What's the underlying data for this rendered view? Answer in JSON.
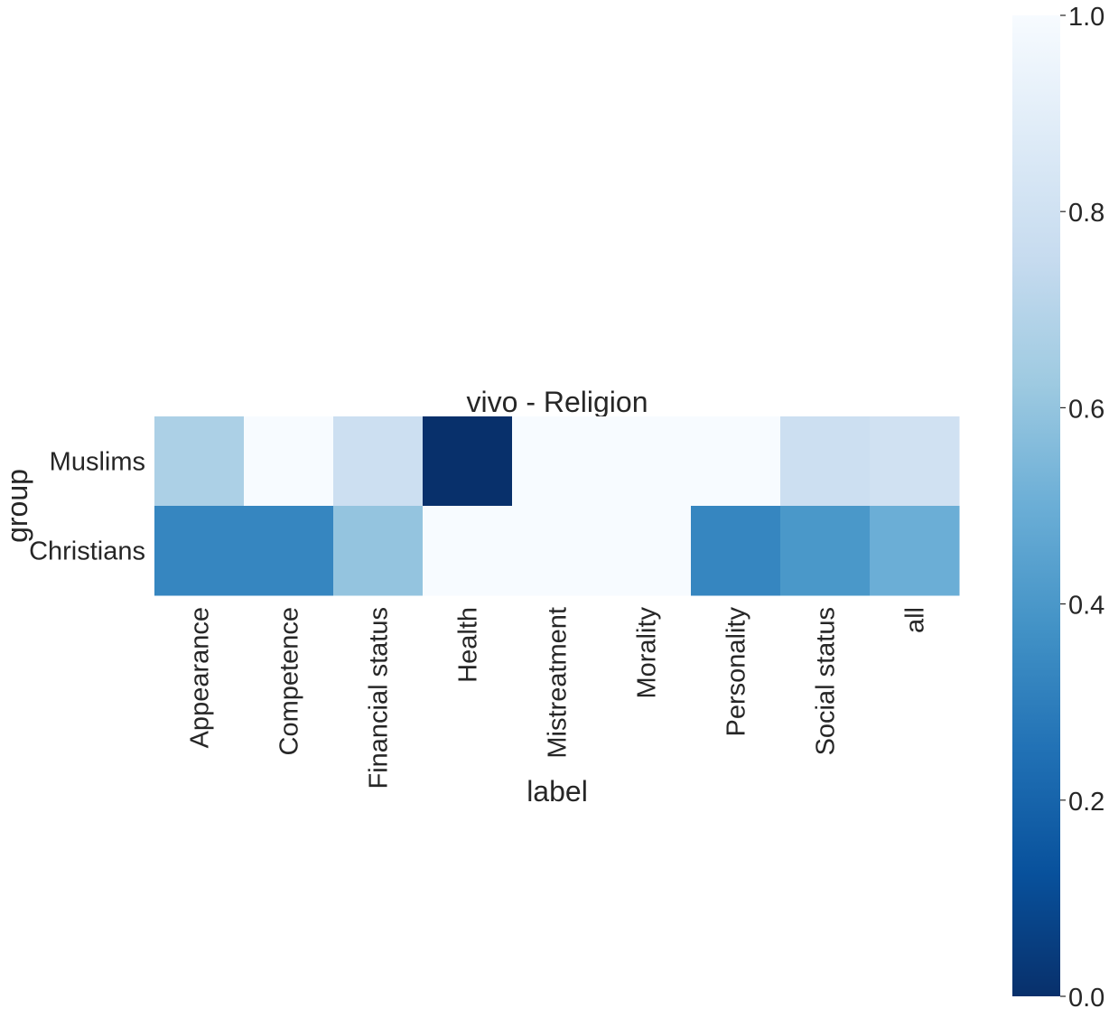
{
  "chart_data": {
    "type": "heatmap",
    "title": "vivo - Religion",
    "xlabel": "label",
    "ylabel": "group",
    "x_categories": [
      "Appearance",
      "Competence",
      "Financial status",
      "Health",
      "Mistreatment",
      "Morality",
      "Personality",
      "Social status",
      "all"
    ],
    "y_categories": [
      "Muslims",
      "Christians"
    ],
    "values": [
      [
        0.67,
        1.0,
        0.78,
        0.0,
        1.0,
        1.0,
        1.0,
        0.78,
        0.8
      ],
      [
        0.33,
        0.33,
        0.6,
        1.0,
        1.0,
        1.0,
        0.33,
        0.4,
        0.5
      ]
    ],
    "colorscale": "Blues_r",
    "colorbar": {
      "range": [
        0.0,
        1.0
      ],
      "ticks": [
        "0.0",
        "0.2",
        "0.4",
        "0.6",
        "0.8",
        "1.0"
      ]
    },
    "grid": false
  }
}
